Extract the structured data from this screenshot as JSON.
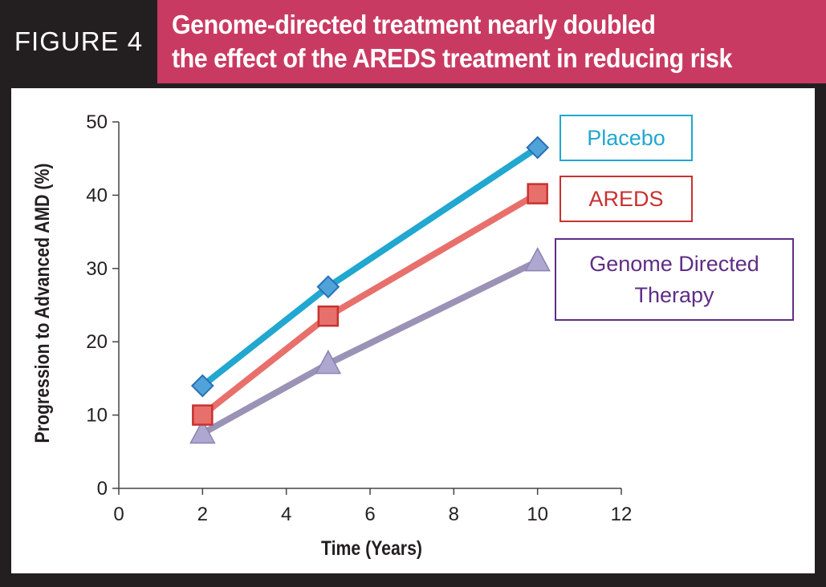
{
  "header": {
    "figure_label": "FIGURE 4",
    "title_line1": "Genome-directed treatment nearly doubled",
    "title_line2": "the effect of the AREDS treatment in reducing risk"
  },
  "colors": {
    "background": "#231f20",
    "title_bg": "#c93a62",
    "placebo": "#21a7d0",
    "areds": "#e8706c",
    "genome": "#9a93b6"
  },
  "chart_data": {
    "type": "line",
    "xlabel": "Time (Years)",
    "ylabel": "Progression to Advanced AMD (%)",
    "xlim": [
      0,
      12
    ],
    "ylim": [
      0,
      50
    ],
    "x_ticks": [
      "0",
      "2",
      "4",
      "6",
      "8",
      "10",
      "12"
    ],
    "y_ticks": [
      "0",
      "10",
      "20",
      "30",
      "40",
      "50"
    ],
    "grid": false,
    "legend_position": "right",
    "series": [
      {
        "name": "Placebo",
        "marker": "diamond",
        "color": "#21a7d0",
        "legend_border": "#21a7d0",
        "legend_text_color": "#21a7d0",
        "x": [
          2,
          5,
          10
        ],
        "y": [
          14,
          27.5,
          46.5
        ]
      },
      {
        "name": "AREDS",
        "marker": "square",
        "color": "#e8706c",
        "legend_border": "#c7322f",
        "legend_text_color": "#c7322f",
        "x": [
          2,
          5,
          10
        ],
        "y": [
          10,
          23.5,
          40.2
        ]
      },
      {
        "name": "Genome Directed Therapy",
        "marker": "triangle",
        "color": "#9a93b6",
        "legend_border": "#5f2d86",
        "legend_text_color": "#5f2d86",
        "legend_lines": [
          "Genome Directed",
          "Therapy"
        ],
        "x": [
          2,
          5,
          10
        ],
        "y": [
          7.5,
          17,
          31
        ]
      }
    ]
  }
}
